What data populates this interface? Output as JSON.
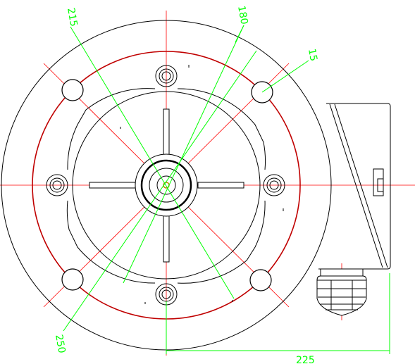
{
  "drawing": {
    "type": "flange-motor-end-view",
    "colors": {
      "outline": "#000000",
      "centerline": "#ff0000",
      "dimension": "#00ff00",
      "background": "#ffffff"
    }
  },
  "dimensions": {
    "d215": "215",
    "d180": "180",
    "d15": "15",
    "d250": "250",
    "d225": "225"
  }
}
